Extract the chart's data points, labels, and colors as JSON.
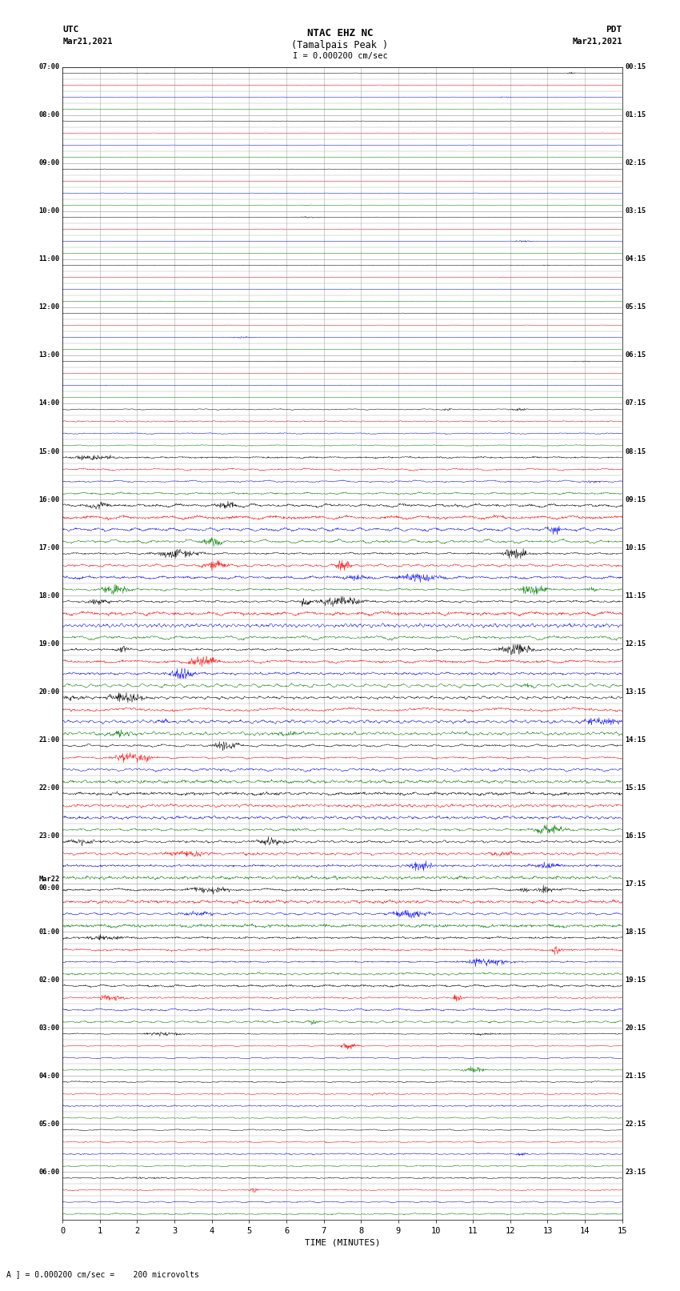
{
  "title_line1": "NTAC EHZ NC",
  "title_line2": "(Tamalpais Peak )",
  "scale_label": "I = 0.000200 cm/sec",
  "utc_label": "UTC",
  "utc_date": "Mar21,2021",
  "pdt_label": "PDT",
  "pdt_date": "Mar21,2021",
  "xlabel": "TIME (MINUTES)",
  "x_min": 0,
  "x_max": 15,
  "x_ticks": [
    0,
    1,
    2,
    3,
    4,
    5,
    6,
    7,
    8,
    9,
    10,
    11,
    12,
    13,
    14,
    15
  ],
  "bg_color": "#ffffff",
  "colors": [
    "black",
    "red",
    "blue",
    "green"
  ],
  "n_rows": 96,
  "grid_color": "#aaaaaa",
  "hour_labels_utc": [
    "07:00",
    "",
    "",
    "",
    "08:00",
    "",
    "",
    "",
    "09:00",
    "",
    "",
    "",
    "10:00",
    "",
    "",
    "",
    "11:00",
    "",
    "",
    "",
    "12:00",
    "",
    "",
    "",
    "13:00",
    "",
    "",
    "",
    "14:00",
    "",
    "",
    "",
    "15:00",
    "",
    "",
    "",
    "16:00",
    "",
    "",
    "",
    "17:00",
    "",
    "",
    "",
    "18:00",
    "",
    "",
    "",
    "19:00",
    "",
    "",
    "",
    "20:00",
    "",
    "",
    "",
    "21:00",
    "",
    "",
    "",
    "22:00",
    "",
    "",
    "",
    "23:00",
    "",
    "",
    "",
    "Mar22\n00:00",
    "",
    "",
    "",
    "01:00",
    "",
    "",
    "",
    "02:00",
    "",
    "",
    "",
    "03:00",
    "",
    "",
    "",
    "04:00",
    "",
    "",
    "",
    "05:00",
    "",
    "",
    "",
    "06:00",
    "",
    "",
    ""
  ],
  "hour_labels_pdt": [
    "00:15",
    "",
    "",
    "",
    "01:15",
    "",
    "",
    "",
    "02:15",
    "",
    "",
    "",
    "03:15",
    "",
    "",
    "",
    "04:15",
    "",
    "",
    "",
    "05:15",
    "",
    "",
    "",
    "06:15",
    "",
    "",
    "",
    "07:15",
    "",
    "",
    "",
    "08:15",
    "",
    "",
    "",
    "09:15",
    "",
    "",
    "",
    "10:15",
    "",
    "",
    "",
    "11:15",
    "",
    "",
    "",
    "12:15",
    "",
    "",
    "",
    "13:15",
    "",
    "",
    "",
    "14:15",
    "",
    "",
    "",
    "15:15",
    "",
    "",
    "",
    "16:15",
    "",
    "",
    "",
    "17:15",
    "",
    "",
    "",
    "18:15",
    "",
    "",
    "",
    "19:15",
    "",
    "",
    "",
    "20:15",
    "",
    "",
    "",
    "21:15",
    "",
    "",
    "",
    "22:15",
    "",
    "",
    "",
    "23:15",
    "",
    "",
    ""
  ]
}
